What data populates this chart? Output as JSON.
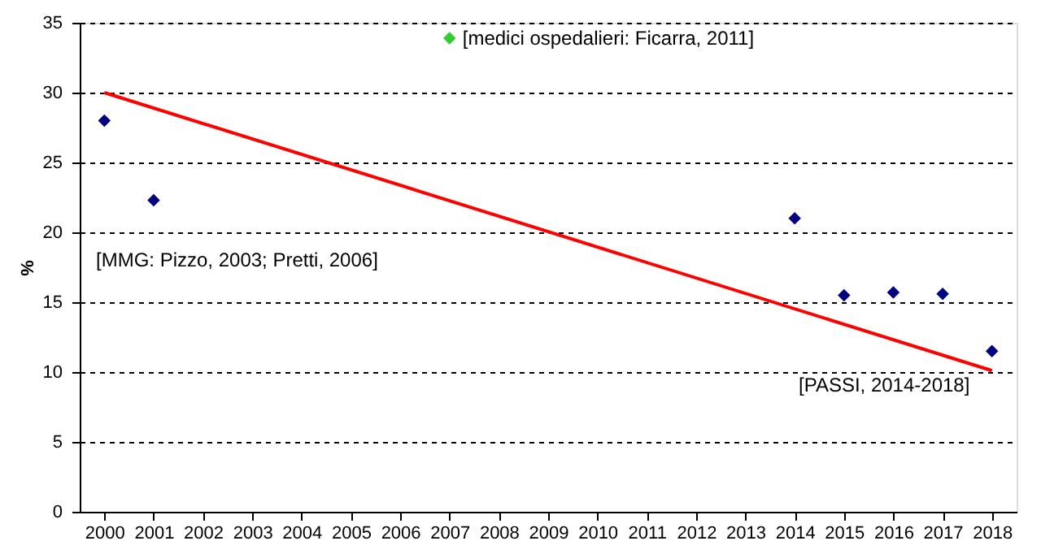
{
  "chart_data": {
    "type": "scatter",
    "ylabel": "%",
    "categories": [
      "2000",
      "2001",
      "2002",
      "2003",
      "2004",
      "2005",
      "2006",
      "2007",
      "2008",
      "2009",
      "2010",
      "2011",
      "2012",
      "2013",
      "2014",
      "2015",
      "2016",
      "2017",
      "2018"
    ],
    "series": [
      {
        "color": "#000080",
        "marker": "diamond",
        "values": [
          28,
          22.3,
          null,
          null,
          null,
          null,
          null,
          null,
          null,
          null,
          null,
          null,
          null,
          null,
          21,
          15.5,
          15.7,
          15.6,
          11.5
        ]
      },
      {
        "color": "#33cc33",
        "marker": "diamond",
        "values": [
          null,
          null,
          null,
          null,
          null,
          null,
          null,
          33.9,
          null,
          null,
          null,
          null,
          null,
          null,
          null,
          null,
          null,
          null,
          null
        ]
      },
      {
        "type": "line",
        "color": "#ff0000",
        "line_style": "solid",
        "values": [
          30,
          null,
          null,
          null,
          null,
          null,
          null,
          null,
          null,
          null,
          null,
          null,
          null,
          null,
          null,
          null,
          null,
          null,
          10.1
        ]
      }
    ],
    "ylim": [
      0,
      35
    ],
    "yticks": [
      0,
      5,
      10,
      15,
      20,
      25,
      30,
      35
    ],
    "grid": "y",
    "annotations": [
      {
        "text": "[medici ospedalieri: Ficarra, 2011]",
        "x": "2007",
        "y": 33.9
      },
      "[MMG: Pizzo, 2003; Pretti, 2006]",
      "[PASSI, 2014-2018]"
    ]
  }
}
